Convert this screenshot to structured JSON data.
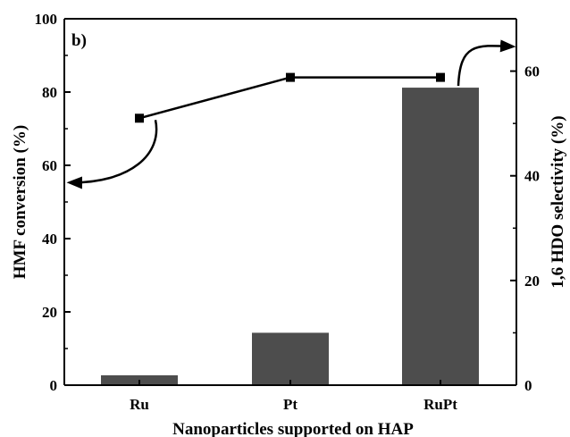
{
  "chart_data": {
    "type": "bar",
    "panel_label": "b)",
    "categories": [
      "Ru",
      "Pt",
      "RuPt"
    ],
    "xlabel": "Nanoparticles supported on HAP",
    "ylabel": "HMF conversion (%)",
    "y2label": "1,6 HDO selectivity (%)",
    "ylim": [
      0,
      100
    ],
    "y2lim": [
      0,
      70
    ],
    "yticks": [
      0,
      20,
      40,
      60,
      80,
      100
    ],
    "y2ticks": [
      0,
      20,
      40,
      60
    ],
    "series": [
      {
        "axis": "left",
        "type": "bar",
        "values": [
          2.7,
          14.3,
          81.2
        ],
        "color": "#4d4d4d"
      },
      {
        "axis": "right",
        "type": "line",
        "values": [
          51,
          58.8,
          58.8
        ],
        "color": "#000000"
      }
    ],
    "annotations": [
      {
        "type": "arrow",
        "from_series": 1,
        "point": 0,
        "direction": "left-axis"
      },
      {
        "type": "arrow",
        "from_series": 0,
        "point": 2,
        "direction": "right-axis"
      }
    ],
    "grid": false
  }
}
